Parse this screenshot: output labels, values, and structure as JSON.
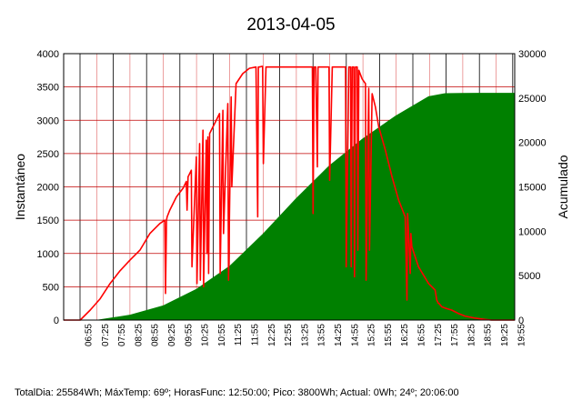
{
  "chart_data": {
    "type": "line",
    "title": "2013-04-05",
    "ylabel": "Instantáneo",
    "y2label": "Acumulado",
    "ylim": [
      0,
      4000
    ],
    "y2lim": [
      0,
      30000
    ],
    "yticks": [
      "0",
      "500",
      "1000",
      "1500",
      "2000",
      "2500",
      "3000",
      "3500",
      "4000"
    ],
    "y2ticks": [
      "0",
      "5000",
      "10000",
      "15000",
      "20000",
      "25000",
      "30000"
    ],
    "xlim": [
      6.5,
      20.1
    ],
    "xticks": [
      "06:55",
      "07:25",
      "07:55",
      "08:25",
      "08:55",
      "09:25",
      "09:55",
      "10:25",
      "10:55",
      "11:25",
      "11:55",
      "12:25",
      "12:55",
      "13:25",
      "13:55",
      "14:25",
      "14:55",
      "15:25",
      "15:55",
      "16:25",
      "16:55",
      "17:25",
      "17:55",
      "18:25",
      "18:55",
      "19:25",
      "19:55"
    ],
    "grid": true,
    "series": [
      {
        "axis": "left",
        "color": "#ff0000",
        "x": [
          6.5,
          7.0,
          7.3,
          7.6,
          7.9,
          8.2,
          8.5,
          8.8,
          9.1,
          9.4,
          9.55,
          9.57,
          9.6,
          9.62,
          9.7,
          9.9,
          10.1,
          10.2,
          10.22,
          10.25,
          10.35,
          10.37,
          10.5,
          10.52,
          10.6,
          10.62,
          10.7,
          10.72,
          10.8,
          10.82,
          10.85,
          10.87,
          10.9,
          11.0,
          11.1,
          11.2,
          11.22,
          11.3,
          11.32,
          11.45,
          11.47,
          11.55,
          11.57,
          11.7,
          11.9,
          12.1,
          12.3,
          12.35,
          12.37,
          12.4,
          12.5,
          12.52,
          12.6,
          12.8,
          13.0,
          13.3,
          13.6,
          13.9,
          14.0,
          14.02,
          14.05,
          14.1,
          14.15,
          14.17,
          14.2,
          14.4,
          14.5,
          14.52,
          14.6,
          14.8,
          15.0,
          15.02,
          15.1,
          15.15,
          15.17,
          15.2,
          15.25,
          15.27,
          15.3,
          15.35,
          15.37,
          15.4,
          15.5,
          15.6,
          15.62,
          15.7,
          15.72,
          15.8,
          15.9,
          16.0,
          16.2,
          16.4,
          16.6,
          16.8,
          16.85,
          16.87,
          16.9,
          16.95,
          16.97,
          17.0,
          17.2,
          17.5,
          17.7,
          17.75,
          17.8,
          17.82,
          17.9,
          18.0,
          18.2,
          18.4,
          18.6,
          18.9,
          19.2,
          19.4,
          19.6,
          19.8,
          20.1
        ],
        "y": [
          0,
          0,
          150,
          320,
          550,
          740,
          900,
          1050,
          1300,
          1450,
          1500,
          400,
          1500,
          1550,
          1650,
          1850,
          1980,
          2080,
          1650,
          2150,
          2250,
          800,
          2450,
          550,
          2650,
          600,
          2850,
          500,
          2700,
          1000,
          2750,
          700,
          2800,
          2900,
          3000,
          3100,
          700,
          3150,
          1300,
          3250,
          600,
          3350,
          2000,
          3550,
          3700,
          3780,
          3800,
          1550,
          3800,
          3800,
          3810,
          2350,
          3800,
          3800,
          3800,
          3800,
          3800,
          3800,
          3800,
          1600,
          3800,
          3800,
          2300,
          3800,
          3800,
          3800,
          3800,
          2100,
          3800,
          3800,
          3800,
          800,
          3800,
          3800,
          800,
          3800,
          3800,
          650,
          3800,
          3800,
          1050,
          3750,
          3620,
          3550,
          600,
          3480,
          1050,
          3400,
          3200,
          2900,
          2550,
          2150,
          1800,
          1550,
          300,
          1600,
          1300,
          700,
          1300,
          1100,
          800,
          550,
          450,
          300,
          250,
          250,
          200,
          180,
          150,
          100,
          60,
          30,
          10,
          0,
          0,
          0,
          0
        ]
      },
      {
        "axis": "right",
        "color": "#008000",
        "x": [
          6.5,
          7.5,
          8.5,
          9.5,
          10.5,
          11.5,
          12.5,
          13.5,
          14.5,
          15.5,
          16.5,
          17.5,
          18.0,
          18.5,
          19.0,
          19.5,
          20.1
        ],
        "y": [
          0,
          20,
          600,
          1650,
          3500,
          6100,
          9700,
          13700,
          17400,
          20400,
          23000,
          25200,
          25550,
          25580,
          25584,
          25584,
          25584
        ]
      }
    ]
  },
  "footer": "TotalDia: 25584Wh; MáxTemp: 69º; HorasFunc: 12:50:00; Pico: 3800Wh; Actual: 0Wh; 24º; 20:06:00"
}
